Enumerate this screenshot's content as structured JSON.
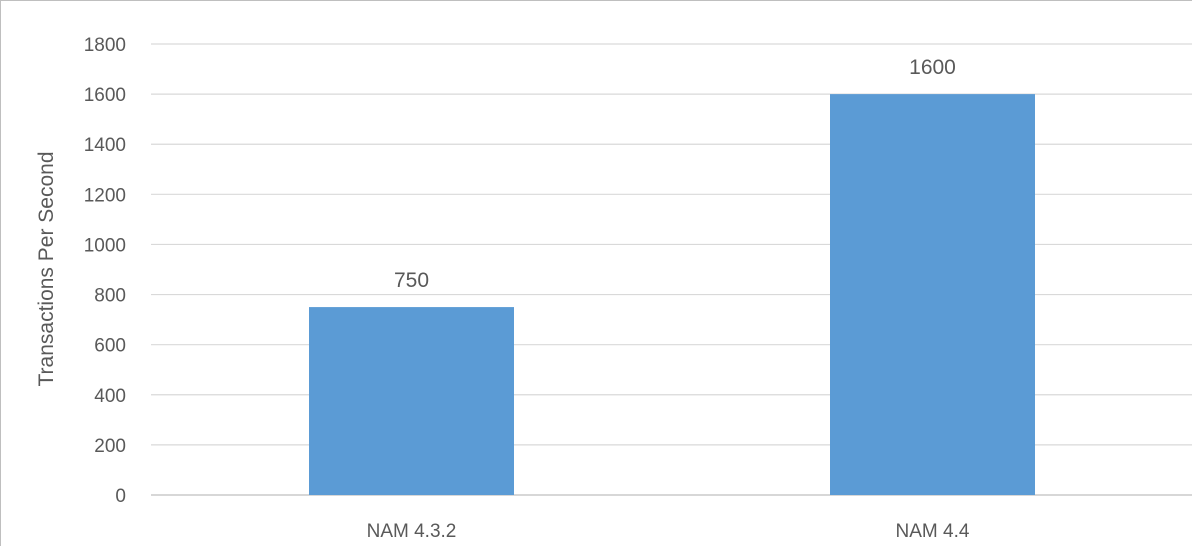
{
  "chart_data": {
    "type": "bar",
    "title": "",
    "xlabel": "",
    "ylabel": "Transactions Per Second",
    "categories": [
      "NAM 4.3.2",
      "NAM 4.4"
    ],
    "values": [
      750,
      1600
    ],
    "data_labels": [
      "750",
      "1600"
    ],
    "ylim": [
      0,
      1800
    ],
    "yticks": [
      "0",
      "200",
      "400",
      "600",
      "800",
      "1000",
      "1200",
      "1400",
      "1600",
      "1800"
    ],
    "grid": true,
    "legend": "none",
    "bar_color": "#5b9bd5",
    "grid_color": "#d9d9d9",
    "text_color": "#595959"
  }
}
